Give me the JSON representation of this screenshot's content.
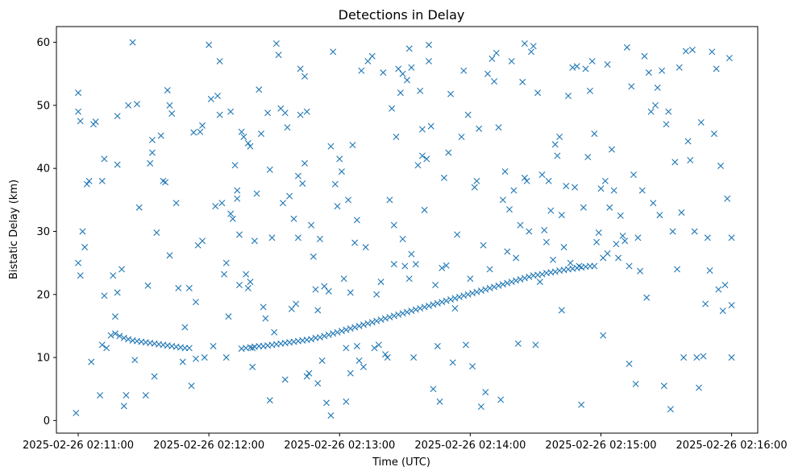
{
  "chart_data": {
    "type": "scatter",
    "title": "Detections in Delay",
    "xlabel": "Time (UTC)",
    "ylabel": "Bistatic Delay (km)",
    "marker": "x",
    "marker_color": "#1f77b4",
    "x_unit": "seconds since 2025-02-26 02:11:00",
    "xlim": [
      -10,
      312
    ],
    "ylim": [
      -2,
      62.5
    ],
    "x_ticks": [
      {
        "value": 0,
        "label": "2025-02-26 02:11:00"
      },
      {
        "value": 60,
        "label": "2025-02-26 02:12:00"
      },
      {
        "value": 120,
        "label": "2025-02-26 02:13:00"
      },
      {
        "value": 180,
        "label": "2025-02-26 02:14:00"
      },
      {
        "value": 240,
        "label": "2025-02-26 02:15:00"
      },
      {
        "value": 300,
        "label": "2025-02-26 02:16:00"
      }
    ],
    "y_ticks": [
      {
        "value": 0,
        "label": "0"
      },
      {
        "value": 10,
        "label": "10"
      },
      {
        "value": 20,
        "label": "20"
      },
      {
        "value": 30,
        "label": "30"
      },
      {
        "value": 40,
        "label": "40"
      },
      {
        "value": 50,
        "label": "50"
      },
      {
        "value": 60,
        "label": "60"
      }
    ],
    "grid": false,
    "track_points": [
      [
        17,
        13.8
      ],
      [
        19,
        13.4
      ],
      [
        21,
        13.1
      ],
      [
        23,
        12.9
      ],
      [
        25,
        12.7
      ],
      [
        27,
        12.6
      ],
      [
        29,
        12.5
      ],
      [
        31,
        12.4
      ],
      [
        33,
        12.3
      ],
      [
        35,
        12.2
      ],
      [
        37,
        12.1
      ],
      [
        39,
        12.0
      ],
      [
        41,
        11.9
      ],
      [
        43,
        11.8
      ],
      [
        45,
        11.7
      ],
      [
        47,
        11.6
      ],
      [
        49,
        11.5
      ],
      [
        51,
        11.5
      ],
      [
        75,
        11.4
      ],
      [
        77,
        11.5
      ],
      [
        79,
        11.6
      ],
      [
        81,
        11.7
      ],
      [
        83,
        11.8
      ],
      [
        85,
        11.8
      ],
      [
        87,
        11.9
      ],
      [
        89,
        12.0
      ],
      [
        91,
        12.1
      ],
      [
        93,
        12.2
      ],
      [
        95,
        12.3
      ],
      [
        97,
        12.4
      ],
      [
        99,
        12.5
      ],
      [
        101,
        12.6
      ],
      [
        103,
        12.7
      ],
      [
        105,
        12.8
      ],
      [
        107,
        12.9
      ],
      [
        109,
        13.1
      ],
      [
        111,
        13.2
      ],
      [
        113,
        13.4
      ],
      [
        115,
        13.6
      ],
      [
        117,
        13.8
      ],
      [
        119,
        14.0
      ],
      [
        121,
        14.2
      ],
      [
        123,
        14.4
      ],
      [
        125,
        14.6
      ],
      [
        127,
        14.8
      ],
      [
        129,
        15.0
      ],
      [
        131,
        15.2
      ],
      [
        133,
        15.4
      ],
      [
        135,
        15.6
      ],
      [
        137,
        15.8
      ],
      [
        139,
        16.0
      ],
      [
        141,
        16.2
      ],
      [
        143,
        16.4
      ],
      [
        145,
        16.6
      ],
      [
        147,
        16.8
      ],
      [
        149,
        17.0
      ],
      [
        151,
        17.2
      ],
      [
        153,
        17.4
      ],
      [
        155,
        17.6
      ],
      [
        157,
        17.8
      ],
      [
        159,
        18.0
      ],
      [
        161,
        18.2
      ],
      [
        163,
        18.4
      ],
      [
        165,
        18.6
      ],
      [
        167,
        18.8
      ],
      [
        169,
        19.0
      ],
      [
        171,
        19.2
      ],
      [
        173,
        19.4
      ],
      [
        175,
        19.6
      ],
      [
        177,
        19.8
      ],
      [
        179,
        20.0
      ],
      [
        181,
        20.2
      ],
      [
        183,
        20.4
      ],
      [
        185,
        20.6
      ],
      [
        187,
        20.8
      ],
      [
        189,
        21.0
      ],
      [
        191,
        21.2
      ],
      [
        193,
        21.4
      ],
      [
        195,
        21.6
      ],
      [
        197,
        21.8
      ],
      [
        199,
        22.0
      ],
      [
        201,
        22.2
      ],
      [
        203,
        22.4
      ],
      [
        205,
        22.6
      ],
      [
        207,
        22.8
      ],
      [
        209,
        23.0
      ],
      [
        211,
        23.1
      ],
      [
        213,
        23.2
      ],
      [
        215,
        23.4
      ],
      [
        217,
        23.5
      ],
      [
        219,
        23.6
      ],
      [
        221,
        23.8
      ],
      [
        223,
        23.9
      ],
      [
        225,
        24.0
      ],
      [
        227,
        24.1
      ],
      [
        229,
        24.2
      ],
      [
        231,
        24.3
      ],
      [
        233,
        24.4
      ],
      [
        235,
        24.5
      ],
      [
        237,
        24.5
      ]
    ],
    "clutter_points": [
      [
        -1,
        1.2
      ],
      [
        0,
        52
      ],
      [
        0,
        49
      ],
      [
        0,
        25
      ],
      [
        1,
        23
      ],
      [
        1,
        47.5
      ],
      [
        2,
        30
      ],
      [
        3,
        27.5
      ],
      [
        4,
        37.5
      ],
      [
        5,
        38
      ],
      [
        6,
        9.3
      ],
      [
        7,
        47
      ],
      [
        8,
        47.4
      ],
      [
        10,
        4
      ],
      [
        11,
        38
      ],
      [
        11,
        12
      ],
      [
        12,
        19.8
      ],
      [
        12,
        41.5
      ],
      [
        13,
        11.5
      ],
      [
        15,
        13.5
      ],
      [
        16,
        23
      ],
      [
        17,
        16.5
      ],
      [
        18,
        20.3
      ],
      [
        18,
        48.3
      ],
      [
        18,
        40.6
      ],
      [
        20,
        24
      ],
      [
        21,
        2.3
      ],
      [
        22,
        4
      ],
      [
        23,
        50
      ],
      [
        25,
        60
      ],
      [
        26,
        9.6
      ],
      [
        27,
        50.2
      ],
      [
        28,
        33.8
      ],
      [
        31,
        4
      ],
      [
        32,
        21.4
      ],
      [
        33,
        40.8
      ],
      [
        34,
        42.5
      ],
      [
        34,
        44.5
      ],
      [
        35,
        7
      ],
      [
        36,
        29.8
      ],
      [
        38,
        45.2
      ],
      [
        39,
        38
      ],
      [
        40,
        37.8
      ],
      [
        41,
        52.4
      ],
      [
        42,
        26.2
      ],
      [
        42,
        50
      ],
      [
        43,
        48.7
      ],
      [
        45,
        34.5
      ],
      [
        46,
        21
      ],
      [
        48,
        9.3
      ],
      [
        49,
        14.8
      ],
      [
        51,
        21
      ],
      [
        52,
        5.5
      ],
      [
        53,
        45.7
      ],
      [
        54,
        18.8
      ],
      [
        54,
        9.8
      ],
      [
        55,
        27.8
      ],
      [
        56,
        45.8
      ],
      [
        57,
        28.5
      ],
      [
        57,
        46.8
      ],
      [
        58,
        10
      ],
      [
        60,
        59.6
      ],
      [
        61,
        51
      ],
      [
        62,
        11.8
      ],
      [
        63,
        34
      ],
      [
        64,
        51.5
      ],
      [
        65,
        57
      ],
      [
        65,
        48.5
      ],
      [
        66,
        34.5
      ],
      [
        67,
        23.2
      ],
      [
        68,
        25
      ],
      [
        68,
        10
      ],
      [
        69,
        16.5
      ],
      [
        70,
        49
      ],
      [
        70,
        32.8
      ],
      [
        71,
        32
      ],
      [
        72,
        40.5
      ],
      [
        73,
        36.5
      ],
      [
        73,
        35.2
      ],
      [
        74,
        21.5
      ],
      [
        74,
        29.5
      ],
      [
        75,
        45.8
      ],
      [
        76,
        45
      ],
      [
        77,
        23.2
      ],
      [
        78,
        21
      ],
      [
        78,
        44
      ],
      [
        79,
        43.5
      ],
      [
        79,
        22
      ],
      [
        80,
        8.5
      ],
      [
        80,
        11.5
      ],
      [
        81,
        28.5
      ],
      [
        82,
        36
      ],
      [
        83,
        52.5
      ],
      [
        84,
        45.5
      ],
      [
        85,
        18
      ],
      [
        86,
        16.2
      ],
      [
        87,
        48.8
      ],
      [
        88,
        39.8
      ],
      [
        88,
        3.2
      ],
      [
        89,
        29
      ],
      [
        90,
        14
      ],
      [
        91,
        59.8
      ],
      [
        92,
        58
      ],
      [
        93,
        49.5
      ],
      [
        94,
        34.5
      ],
      [
        95,
        48.8
      ],
      [
        95,
        6.5
      ],
      [
        96,
        46.5
      ],
      [
        97,
        35.6
      ],
      [
        98,
        17.7
      ],
      [
        99,
        32
      ],
      [
        100,
        18.5
      ],
      [
        101,
        29
      ],
      [
        101,
        38.8
      ],
      [
        102,
        55.8
      ],
      [
        102,
        48.5
      ],
      [
        103,
        37.6
      ],
      [
        104,
        54.6
      ],
      [
        104,
        40.8
      ],
      [
        105,
        49
      ],
      [
        105,
        7
      ],
      [
        106,
        7.5
      ],
      [
        107,
        31
      ],
      [
        108,
        26
      ],
      [
        109,
        20.8
      ],
      [
        110,
        17.5
      ],
      [
        110,
        5.9
      ],
      [
        111,
        28.8
      ],
      [
        112,
        9.5
      ],
      [
        113,
        21.3
      ],
      [
        114,
        2.8
      ],
      [
        115,
        20.5
      ],
      [
        116,
        43.5
      ],
      [
        116,
        0.8
      ],
      [
        117,
        58.5
      ],
      [
        118,
        37.5
      ],
      [
        119,
        34
      ],
      [
        120,
        41.5
      ],
      [
        121,
        39.5
      ],
      [
        122,
        22.5
      ],
      [
        123,
        11.5
      ],
      [
        123,
        3
      ],
      [
        124,
        35
      ],
      [
        125,
        20.3
      ],
      [
        125,
        7.5
      ],
      [
        126,
        43.7
      ],
      [
        127,
        28.2
      ],
      [
        128,
        31.8
      ],
      [
        128,
        11.8
      ],
      [
        129,
        9.5
      ],
      [
        130,
        55.5
      ],
      [
        131,
        8.5
      ],
      [
        132,
        27.5
      ],
      [
        133,
        57
      ],
      [
        135,
        57.8
      ],
      [
        136,
        11.5
      ],
      [
        137,
        20
      ],
      [
        138,
        12
      ],
      [
        139,
        22
      ],
      [
        140,
        55.2
      ],
      [
        141,
        10.5
      ],
      [
        142,
        10
      ],
      [
        143,
        35
      ],
      [
        144,
        49.5
      ],
      [
        145,
        24.8
      ],
      [
        145,
        31
      ],
      [
        146,
        45
      ],
      [
        147,
        55.8
      ],
      [
        148,
        52
      ],
      [
        149,
        55
      ],
      [
        149,
        28.8
      ],
      [
        150,
        24.5
      ],
      [
        151,
        54
      ],
      [
        152,
        59
      ],
      [
        152,
        22.5
      ],
      [
        153,
        26.4
      ],
      [
        153,
        56
      ],
      [
        154,
        10
      ],
      [
        155,
        24.8
      ],
      [
        156,
        40.5
      ],
      [
        157,
        52.3
      ],
      [
        158,
        42
      ],
      [
        158,
        46.2
      ],
      [
        159,
        33.4
      ],
      [
        160,
        41.5
      ],
      [
        161,
        59.6
      ],
      [
        161,
        57
      ],
      [
        162,
        46.7
      ],
      [
        163,
        5
      ],
      [
        164,
        21.5
      ],
      [
        165,
        11.8
      ],
      [
        166,
        3
      ],
      [
        167,
        24.2
      ],
      [
        168,
        38.5
      ],
      [
        169,
        24.6
      ],
      [
        170,
        42.5
      ],
      [
        171,
        51.8
      ],
      [
        172,
        9.2
      ],
      [
        173,
        17.8
      ],
      [
        174,
        29.5
      ],
      [
        176,
        45
      ],
      [
        177,
        55.5
      ],
      [
        178,
        12
      ],
      [
        179,
        48.5
      ],
      [
        180,
        22.5
      ],
      [
        181,
        8.6
      ],
      [
        182,
        37
      ],
      [
        183,
        38
      ],
      [
        184,
        46.3
      ],
      [
        185,
        2.2
      ],
      [
        186,
        27.8
      ],
      [
        187,
        4.5
      ],
      [
        188,
        55
      ],
      [
        189,
        24
      ],
      [
        190,
        57.4
      ],
      [
        191,
        53.8
      ],
      [
        192,
        58.3
      ],
      [
        193,
        46.5
      ],
      [
        194,
        3.3
      ],
      [
        195,
        35
      ],
      [
        196,
        39.5
      ],
      [
        197,
        26.8
      ],
      [
        198,
        33.5
      ],
      [
        199,
        57
      ],
      [
        200,
        36.5
      ],
      [
        201,
        25.8
      ],
      [
        202,
        12.2
      ],
      [
        203,
        31
      ],
      [
        204,
        53.7
      ],
      [
        205,
        38.5
      ],
      [
        205,
        59.8
      ],
      [
        206,
        38
      ],
      [
        207,
        30
      ],
      [
        208,
        58.5
      ],
      [
        209,
        59.4
      ],
      [
        210,
        12
      ],
      [
        211,
        52
      ],
      [
        212,
        22
      ],
      [
        213,
        39
      ],
      [
        214,
        30.2
      ],
      [
        215,
        28.3
      ],
      [
        216,
        38
      ],
      [
        217,
        33.3
      ],
      [
        218,
        25.5
      ],
      [
        219,
        43.8
      ],
      [
        220,
        42
      ],
      [
        221,
        45
      ],
      [
        222,
        17.5
      ],
      [
        222,
        32.6
      ],
      [
        223,
        27.5
      ],
      [
        224,
        37.2
      ],
      [
        225,
        51.5
      ],
      [
        226,
        25
      ],
      [
        227,
        56
      ],
      [
        228,
        37
      ],
      [
        229,
        56.2
      ],
      [
        230,
        24.5
      ],
      [
        231,
        2.5
      ],
      [
        232,
        33.8
      ],
      [
        233,
        55.8
      ],
      [
        234,
        41.8
      ],
      [
        235,
        52.3
      ],
      [
        236,
        57
      ],
      [
        237,
        45.5
      ],
      [
        238,
        28.3
      ],
      [
        239,
        29.8
      ],
      [
        240,
        36.8
      ],
      [
        241,
        13.5
      ],
      [
        241,
        25.8
      ],
      [
        242,
        38
      ],
      [
        243,
        26.5
      ],
      [
        243,
        56.5
      ],
      [
        244,
        33.8
      ],
      [
        245,
        43
      ],
      [
        246,
        36.5
      ],
      [
        247,
        28
      ],
      [
        248,
        25.8
      ],
      [
        249,
        32.5
      ],
      [
        250,
        29.3
      ],
      [
        251,
        28.5
      ],
      [
        252,
        59.2
      ],
      [
        253,
        24.5
      ],
      [
        253,
        9
      ],
      [
        254,
        53
      ],
      [
        255,
        39
      ],
      [
        256,
        5.8
      ],
      [
        257,
        29
      ],
      [
        258,
        23.7
      ],
      [
        259,
        36.5
      ],
      [
        260,
        57.8
      ],
      [
        261,
        19.5
      ],
      [
        262,
        55.2
      ],
      [
        263,
        49
      ],
      [
        264,
        34.5
      ],
      [
        265,
        50
      ],
      [
        266,
        52.8
      ],
      [
        267,
        32.6
      ],
      [
        268,
        55.5
      ],
      [
        269,
        5.5
      ],
      [
        270,
        47
      ],
      [
        271,
        49
      ],
      [
        272,
        1.8
      ],
      [
        273,
        30
      ],
      [
        274,
        41
      ],
      [
        275,
        24
      ],
      [
        276,
        56
      ],
      [
        277,
        33
      ],
      [
        278,
        10
      ],
      [
        279,
        58.6
      ],
      [
        280,
        44.3
      ],
      [
        281,
        41.3
      ],
      [
        282,
        58.8
      ],
      [
        283,
        30
      ],
      [
        284,
        10
      ],
      [
        285,
        5.2
      ],
      [
        286,
        47.3
      ],
      [
        287,
        10.2
      ],
      [
        288,
        18.5
      ],
      [
        289,
        29
      ],
      [
        290,
        23.8
      ],
      [
        291,
        58.5
      ],
      [
        292,
        45.5
      ],
      [
        293,
        55.8
      ],
      [
        294,
        20.8
      ],
      [
        295,
        40.4
      ],
      [
        296,
        17.4
      ],
      [
        297,
        21.5
      ],
      [
        298,
        35.2
      ],
      [
        299,
        57.5
      ],
      [
        300,
        10
      ],
      [
        300,
        18.3
      ],
      [
        300,
        29
      ]
    ]
  }
}
